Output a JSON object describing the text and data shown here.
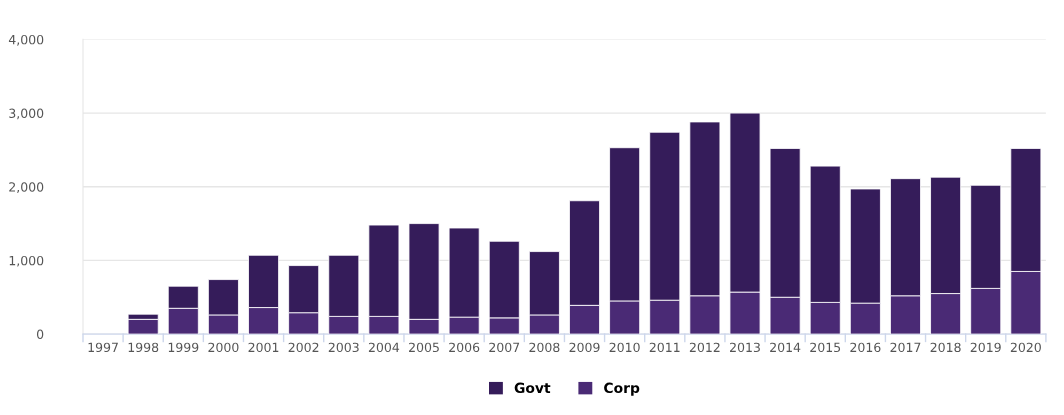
{
  "chart_data": {
    "type": "bar",
    "stacked": true,
    "categories": [
      "1997",
      "1998",
      "1999",
      "2000",
      "2001",
      "2002",
      "2003",
      "2004",
      "2005",
      "2006",
      "2007",
      "2008",
      "2009",
      "2010",
      "2011",
      "2012",
      "2013",
      "2014",
      "2015",
      "2016",
      "2017",
      "2018",
      "2019",
      "2020"
    ],
    "series": [
      {
        "name": "Corp",
        "color": "#4a2a75",
        "values": [
          null,
          200,
          350,
          260,
          360,
          290,
          240,
          240,
          200,
          230,
          220,
          260,
          390,
          450,
          460,
          520,
          570,
          500,
          430,
          420,
          520,
          550,
          620,
          850
        ]
      },
      {
        "name": "Govt",
        "color": "#351c5a",
        "values": [
          null,
          70,
          300,
          480,
          710,
          640,
          830,
          1240,
          1300,
          1210,
          1040,
          860,
          1420,
          2080,
          2280,
          2360,
          2430,
          2020,
          1850,
          1550,
          1590,
          1580,
          1400,
          1670
        ]
      }
    ],
    "ylim": [
      0,
      4000
    ],
    "yticks": [
      {
        "value": 0,
        "label": "0"
      },
      {
        "value": 1000,
        "label": "1,000"
      },
      {
        "value": 2000,
        "label": "2,000"
      },
      {
        "value": 3000,
        "label": "3,000"
      },
      {
        "value": 4000,
        "label": "4,000"
      }
    ],
    "grid": "y",
    "legend": "bottom"
  }
}
